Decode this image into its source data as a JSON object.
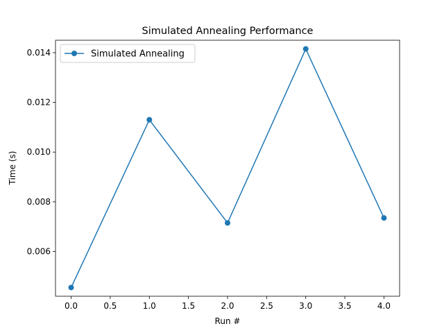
{
  "chart_data": {
    "type": "line",
    "title": "Simulated Annealing Performance",
    "xlabel": "Run #",
    "ylabel": "Time (s)",
    "x": [
      0,
      1,
      2,
      3,
      4
    ],
    "series": [
      {
        "name": "Simulated Annealing",
        "values": [
          0.00455,
          0.0113,
          0.00715,
          0.01415,
          0.00735
        ],
        "color": "#1f77b4",
        "marker": "circle"
      }
    ],
    "xlim": [
      -0.2,
      4.2
    ],
    "ylim": [
      0.0042,
      0.0145
    ],
    "xticks": [
      0.0,
      0.5,
      1.0,
      1.5,
      2.0,
      2.5,
      3.0,
      3.5,
      4.0
    ],
    "xtick_labels": [
      "0.0",
      "0.5",
      "1.0",
      "1.5",
      "2.0",
      "2.5",
      "3.0",
      "3.5",
      "4.0"
    ],
    "yticks": [
      0.006,
      0.008,
      0.01,
      0.012,
      0.014
    ],
    "ytick_labels": [
      "0.006",
      "0.008",
      "0.010",
      "0.012",
      "0.014"
    ],
    "grid": false,
    "legend_position": "top-left"
  }
}
